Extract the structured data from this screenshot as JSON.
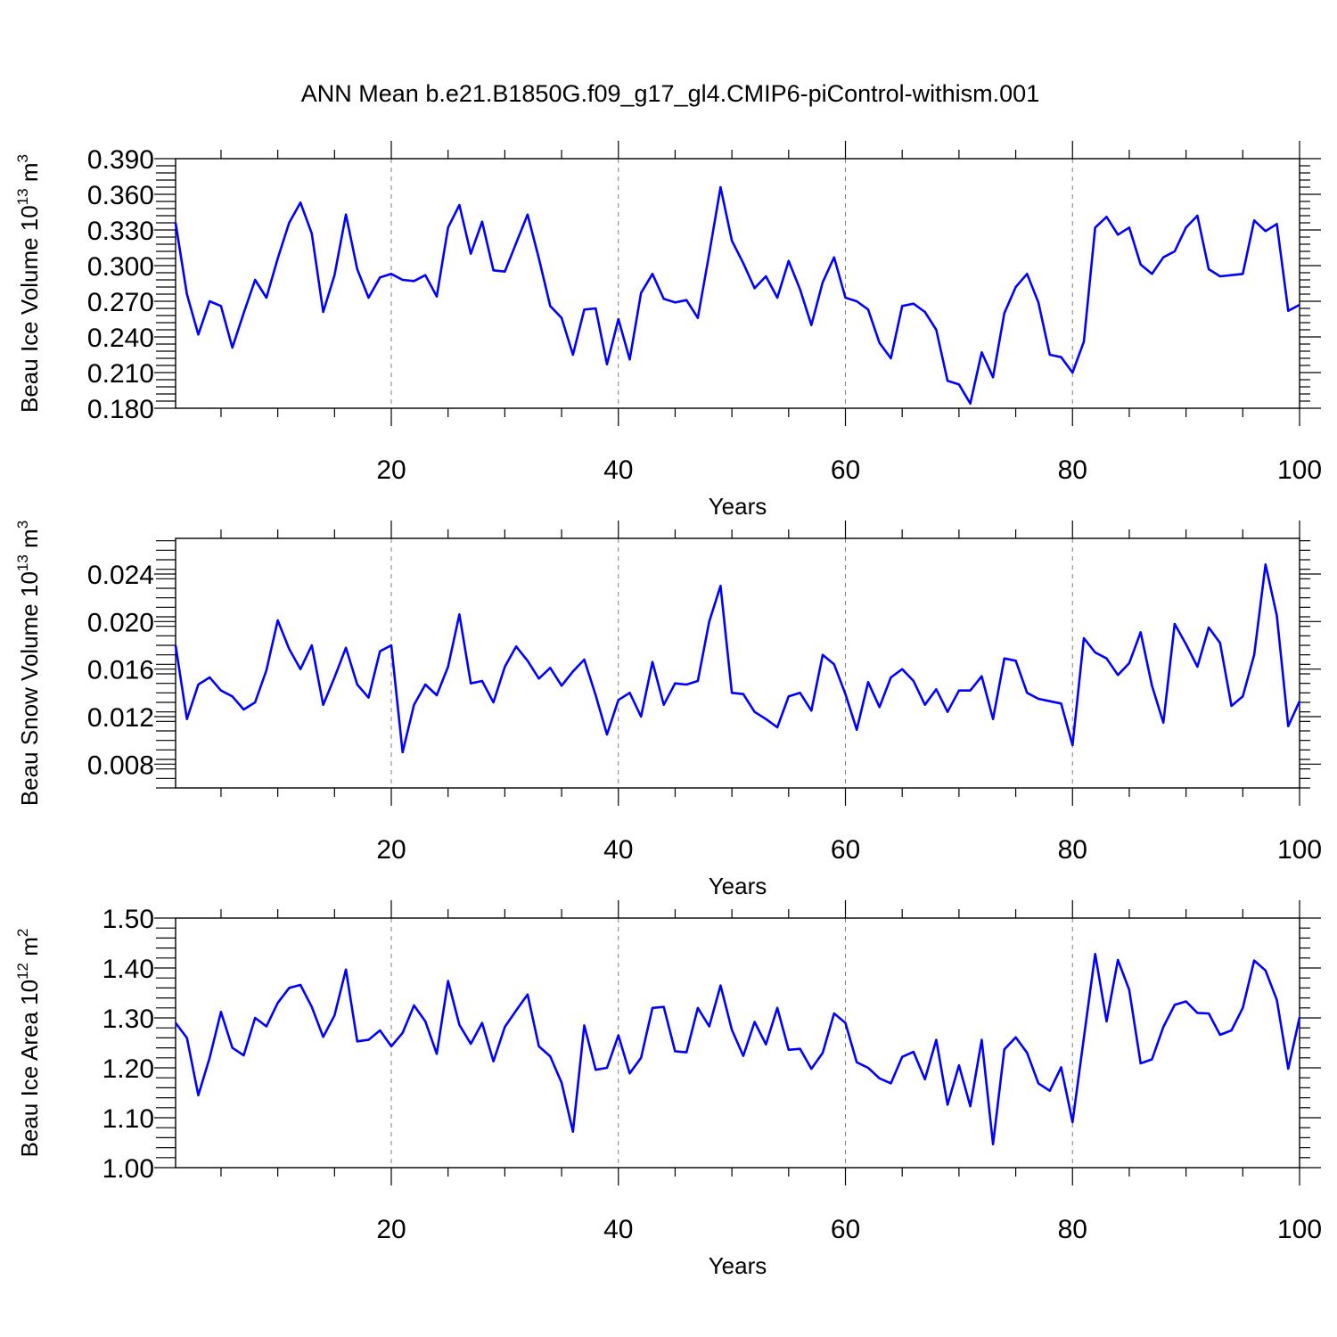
{
  "figure": {
    "title": "ANN Mean b.e21.B1850G.f09_g17_gl4.CMIP6-piControl-withism.001",
    "line_color": "#0000ff",
    "grid_color": "#7f7f7f"
  },
  "chart_data": [
    {
      "type": "line",
      "title": "",
      "xlabel": "Years",
      "ylabel": "Beau Ice Volume 10",
      "ylabel_exp": "13",
      "ylabel_unit": " m",
      "ylabel_unit_exp": "3",
      "xlim": [
        1,
        100
      ],
      "ylim": [
        0.18,
        0.39
      ],
      "xticks": [
        20,
        40,
        60,
        80,
        100
      ],
      "xtick_labels": [
        "20",
        "40",
        "60",
        "80",
        "100"
      ],
      "yticks": [
        0.18,
        0.21,
        0.24,
        0.27,
        0.3,
        0.33,
        0.36,
        0.39
      ],
      "ytick_labels": [
        "0.180",
        "0.210",
        "0.240",
        "0.270",
        "0.300",
        "0.330",
        "0.360",
        "0.390"
      ],
      "grid": "vertical dashed at major x ticks",
      "values": [
        0.336,
        0.276,
        0.242,
        0.27,
        0.266,
        0.231,
        0.26,
        0.288,
        0.273,
        0.306,
        0.336,
        0.353,
        0.327,
        0.261,
        0.292,
        0.343,
        0.297,
        0.273,
        0.29,
        0.293,
        0.288,
        0.287,
        0.292,
        0.274,
        0.332,
        0.351,
        0.31,
        0.337,
        0.296,
        0.295,
        0.319,
        0.343,
        0.306,
        0.266,
        0.256,
        0.225,
        0.263,
        0.264,
        0.217,
        0.255,
        0.221,
        0.277,
        0.293,
        0.272,
        0.269,
        0.271,
        0.256,
        0.31,
        0.366,
        0.321,
        0.302,
        0.281,
        0.291,
        0.273,
        0.304,
        0.28,
        0.25,
        0.286,
        0.307,
        0.273,
        0.27,
        0.263,
        0.235,
        0.222,
        0.266,
        0.268,
        0.261,
        0.246,
        0.203,
        0.2,
        0.184,
        0.227,
        0.206,
        0.26,
        0.282,
        0.293,
        0.269,
        0.225,
        0.223,
        0.21,
        0.236,
        0.332,
        0.341,
        0.326,
        0.332,
        0.301,
        0.293,
        0.307,
        0.312,
        0.332,
        0.342,
        0.297,
        0.291,
        0.292,
        0.293,
        0.338,
        0.329,
        0.335,
        0.262,
        0.267
      ]
    },
    {
      "type": "line",
      "title": "",
      "xlabel": "Years",
      "ylabel": "Beau Snow Volume 10",
      "ylabel_exp": "13",
      "ylabel_unit": " m",
      "ylabel_unit_exp": "3",
      "xlim": [
        1,
        100
      ],
      "ylim": [
        0.006,
        0.027
      ],
      "xticks": [
        20,
        40,
        60,
        80,
        100
      ],
      "xtick_labels": [
        "20",
        "40",
        "60",
        "80",
        "100"
      ],
      "yticks": [
        0.008,
        0.012,
        0.016,
        0.02,
        0.024
      ],
      "ytick_labels": [
        "0.008",
        "0.012",
        "0.016",
        "0.020",
        "0.024"
      ],
      "grid": "vertical dashed at major x ticks",
      "values": [
        0.018,
        0.0118,
        0.0147,
        0.0153,
        0.0142,
        0.0137,
        0.0126,
        0.0132,
        0.0159,
        0.0201,
        0.0177,
        0.016,
        0.018,
        0.013,
        0.0153,
        0.0178,
        0.0147,
        0.0136,
        0.0175,
        0.018,
        0.009,
        0.013,
        0.0147,
        0.0138,
        0.0162,
        0.0206,
        0.0148,
        0.015,
        0.0132,
        0.0162,
        0.0179,
        0.0167,
        0.0152,
        0.0161,
        0.0146,
        0.0158,
        0.0168,
        0.0138,
        0.0105,
        0.0134,
        0.014,
        0.012,
        0.0166,
        0.013,
        0.0148,
        0.0147,
        0.015,
        0.02,
        0.023,
        0.014,
        0.0139,
        0.0124,
        0.0118,
        0.0111,
        0.0137,
        0.014,
        0.0125,
        0.0172,
        0.0164,
        0.0139,
        0.0109,
        0.0149,
        0.0128,
        0.0153,
        0.016,
        0.015,
        0.013,
        0.0143,
        0.0124,
        0.0142,
        0.0142,
        0.0154,
        0.0118,
        0.0169,
        0.0167,
        0.014,
        0.0135,
        0.0133,
        0.0131,
        0.0096,
        0.0186,
        0.0174,
        0.0169,
        0.0155,
        0.0165,
        0.0191,
        0.0146,
        0.0115,
        0.0198,
        0.0181,
        0.0162,
        0.0195,
        0.0182,
        0.0129,
        0.0137,
        0.0172,
        0.0248,
        0.0205,
        0.0112,
        0.0133
      ]
    },
    {
      "type": "line",
      "title": "",
      "xlabel": "Years",
      "ylabel": "Beau Ice Area 10",
      "ylabel_exp": "12",
      "ylabel_unit": " m",
      "ylabel_unit_exp": "2",
      "xlim": [
        1,
        100
      ],
      "ylim": [
        1.0,
        1.5
      ],
      "xticks": [
        20,
        40,
        60,
        80,
        100
      ],
      "xtick_labels": [
        "20",
        "40",
        "60",
        "80",
        "100"
      ],
      "yticks": [
        1.0,
        1.1,
        1.2,
        1.3,
        1.4,
        1.5
      ],
      "ytick_labels": [
        "1.00",
        "1.10",
        "1.20",
        "1.30",
        "1.40",
        "1.50"
      ],
      "grid": "vertical dashed at major x ticks",
      "values": [
        1.29,
        1.26,
        1.145,
        1.22,
        1.312,
        1.24,
        1.225,
        1.3,
        1.283,
        1.33,
        1.36,
        1.366,
        1.322,
        1.262,
        1.305,
        1.397,
        1.253,
        1.256,
        1.275,
        1.243,
        1.27,
        1.325,
        1.293,
        1.228,
        1.374,
        1.286,
        1.248,
        1.29,
        1.213,
        1.282,
        1.315,
        1.347,
        1.243,
        1.223,
        1.17,
        1.072,
        1.285,
        1.196,
        1.2,
        1.265,
        1.189,
        1.22,
        1.32,
        1.322,
        1.233,
        1.231,
        1.32,
        1.283,
        1.365,
        1.276,
        1.224,
        1.292,
        1.247,
        1.32,
        1.236,
        1.238,
        1.198,
        1.23,
        1.309,
        1.29,
        1.211,
        1.2,
        1.179,
        1.169,
        1.222,
        1.232,
        1.177,
        1.256,
        1.126,
        1.205,
        1.123,
        1.256,
        1.047,
        1.237,
        1.261,
        1.23,
        1.169,
        1.154,
        1.201,
        1.091,
        1.26,
        1.428,
        1.293,
        1.416,
        1.356,
        1.209,
        1.217,
        1.282,
        1.326,
        1.333,
        1.31,
        1.309,
        1.266,
        1.275,
        1.32,
        1.415,
        1.395,
        1.336,
        1.198,
        1.301
      ]
    }
  ]
}
